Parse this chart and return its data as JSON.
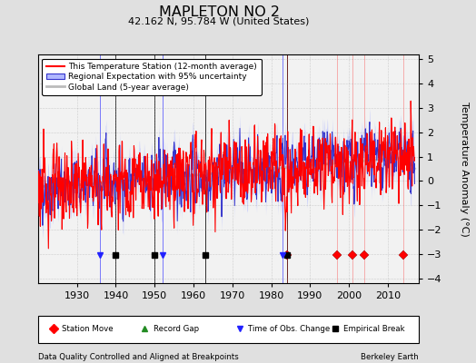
{
  "title": "MAPLETON NO 2",
  "subtitle": "42.162 N, 95.784 W (United States)",
  "ylabel": "Temperature Anomaly (°C)",
  "bottom_left": "Data Quality Controlled and Aligned at Breakpoints",
  "bottom_right": "Berkeley Earth",
  "xlim": [
    1920,
    2018
  ],
  "ylim": [
    -4.2,
    5.2
  ],
  "yticks": [
    -4,
    -3,
    -2,
    -1,
    0,
    1,
    2,
    3,
    4,
    5
  ],
  "xticks": [
    1930,
    1940,
    1950,
    1960,
    1970,
    1980,
    1990,
    2000,
    2010
  ],
  "bg_color": "#e0e0e0",
  "plot_bg_color": "#f2f2f2",
  "station_move_years": [
    1984,
    1997,
    2001,
    2004,
    2014
  ],
  "empirical_break_years": [
    1940,
    1950,
    1963,
    1984
  ],
  "obs_change_years": [
    1936,
    1952,
    1983
  ],
  "record_gap_years": [],
  "marker_y": -3.05,
  "seed": 42
}
